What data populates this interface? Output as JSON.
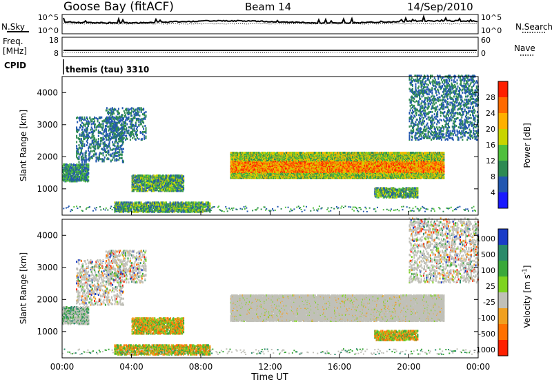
{
  "header": {
    "station": "Goose Bay (fitACF)",
    "beam": "Beam 14",
    "date": "14/Sep/2010"
  },
  "top_panels": {
    "nsky_label": "N.Sky",
    "nsearch_label": "N.Search",
    "freq_label": "Freq.",
    "freq_unit": "[MHz]",
    "nave_label": "Nave",
    "cpid_label": "CPID",
    "cpid_value": "themis (tau) 3310",
    "left_ticks_noise": [
      "10^5",
      "10^0"
    ],
    "right_ticks_noise": [
      "10^5",
      "10^0"
    ],
    "left_ticks_freq": [
      "18",
      "8"
    ],
    "right_ticks_nave": [
      "60",
      "0"
    ]
  },
  "chart_data": [
    {
      "type": "heatmap",
      "title": "",
      "xlabel": "Time UT",
      "ylabel": "Slant Range [km]",
      "xlim": [
        0,
        24
      ],
      "ylim": [
        180,
        4500
      ],
      "x_ticks": [
        "00:00",
        "04:00",
        "08:00",
        "12:00",
        "16:00",
        "20:00",
        "00:00"
      ],
      "y_ticks": [
        1000,
        2000,
        3000,
        4000
      ],
      "colorbar": {
        "label": "Power [dB]",
        "ticks": [
          "4",
          "8",
          "12",
          "16",
          "20",
          "24",
          "28"
        ],
        "colors": [
          "#1a1aff",
          "#2257b0",
          "#2d8a52",
          "#4fbf3c",
          "#c8d400",
          "#ffb000",
          "#ff6a00",
          "#ff1f00"
        ]
      },
      "regions": [
        {
          "t": [
            0.0,
            1.5
          ],
          "r": [
            1200,
            1750
          ],
          "level": "low"
        },
        {
          "t": [
            0.8,
            3.5
          ],
          "r": [
            1800,
            3200
          ],
          "level": "sparse"
        },
        {
          "t": [
            2.5,
            4.8
          ],
          "r": [
            2500,
            3500
          ],
          "level": "sparse"
        },
        {
          "t": [
            4.0,
            7.0
          ],
          "r": [
            900,
            1400
          ],
          "level": "mid"
        },
        {
          "t": [
            3.0,
            8.5
          ],
          "r": [
            250,
            550
          ],
          "level": "mid"
        },
        {
          "t": [
            9.7,
            22.0
          ],
          "r": [
            1300,
            2100
          ],
          "level": "high"
        },
        {
          "t": [
            18.0,
            20.5
          ],
          "r": [
            700,
            1000
          ],
          "level": "mid"
        },
        {
          "t": [
            20.0,
            24.0
          ],
          "r": [
            2500,
            4500
          ],
          "level": "sparse"
        }
      ]
    },
    {
      "type": "heatmap",
      "title": "",
      "xlabel": "Time UT",
      "ylabel": "Slant Range [km]",
      "xlim": [
        0,
        24
      ],
      "ylim": [
        180,
        4500
      ],
      "x_ticks": [
        "00:00",
        "04:00",
        "08:00",
        "12:00",
        "16:00",
        "20:00",
        "00:00"
      ],
      "y_ticks": [
        1000,
        2000,
        3000,
        4000
      ],
      "colorbar": {
        "label": "Velocity [m s^-1]",
        "ticks": [
          "1000",
          "500",
          "100",
          "25",
          "-25",
          "-100",
          "-500",
          "-1000"
        ],
        "colors": [
          "#1a3cc8",
          "#2a8a6a",
          "#3aa83a",
          "#7ed320",
          "#c0c0b8",
          "#f0a020",
          "#ff7000",
          "#ff2000"
        ]
      }
    }
  ]
}
